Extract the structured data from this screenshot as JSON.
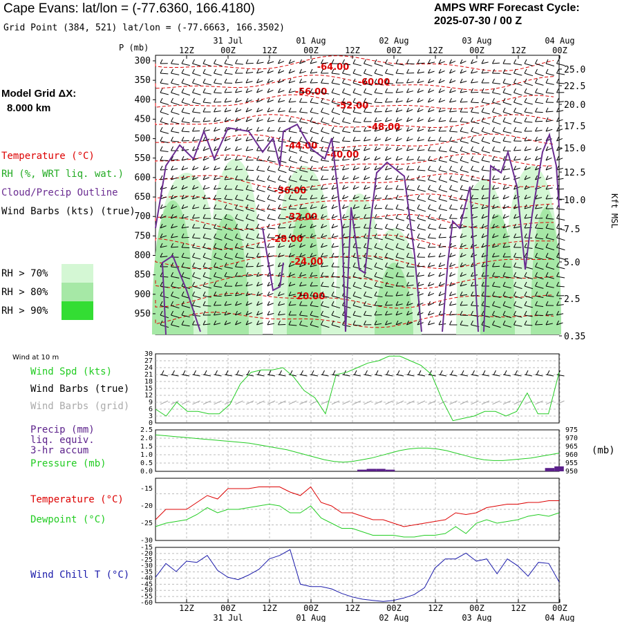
{
  "header": {
    "title": "Cape Evans:  lat/lon = (-77.6360, 166.4180)",
    "subtitle": "Grid Point (384, 521) lat/lon = (-77.6663, 166.3502)",
    "cycle_line1": "AMPS WRF Forecast Cycle:",
    "cycle_line2": "2025-07-30 / 00  Z"
  },
  "sidebar": {
    "model_grid_label": "Model Grid ΔX:",
    "model_grid_value": "8.000 km",
    "legend_temperature": "Temperature (°C)",
    "legend_rh": "RH (%, WRT liq. wat.)",
    "legend_cloud": "Cloud/Precip Outline",
    "legend_wind": "Wind Barbs (kts) (true)",
    "rh70": "RH > 70%",
    "rh80": "RH > 80%",
    "rh90": "RH > 90%"
  },
  "colors": {
    "temperature": "#dd0000",
    "rh70": "#d4f7d4",
    "rh80": "#a6e8a6",
    "rh90": "#33dd33",
    "cloud": "#6a2c91",
    "wind_speed": "#22cc22",
    "dewpoint": "#22cc22",
    "pressure": "#22cc22",
    "precip": "#5a1f8a",
    "wind_chill": "#1a1aaa",
    "wind_grid": "#aaaaaa"
  },
  "time_axis": {
    "top_hour_labels": [
      "12Z",
      "00Z",
      "12Z",
      "00Z",
      "12Z",
      "00Z",
      "12Z",
      "00Z",
      "12Z",
      "00Z"
    ],
    "top_date_labels": [
      "31 Jul",
      "01 Aug",
      "02 Aug",
      "03 Aug",
      "04 Aug"
    ],
    "bottom_hour_labels": [
      "12Z",
      "00Z",
      "12Z",
      "00Z",
      "12Z",
      "00Z",
      "12Z",
      "00Z",
      "12Z",
      "00Z"
    ],
    "bottom_date_labels": [
      "31 Jul",
      "01 Aug",
      "02 Aug",
      "03 Aug",
      "04 Aug"
    ]
  },
  "chart_data": [
    {
      "type": "heatmap",
      "title": "",
      "ylabel_left": "P (mb)",
      "ylabel_right": "Kft MSL",
      "pressure_ticks": [
        "300",
        "350",
        "400",
        "450",
        "500",
        "550",
        "600",
        "650",
        "700",
        "750",
        "800",
        "850",
        "900",
        "950"
      ],
      "height_ticks": [
        "25.0",
        "22.5",
        "20.0",
        "17.5",
        "15.0",
        "12.5",
        "10.0",
        "7.5",
        "5.0",
        "2.5",
        "0.35"
      ],
      "temperature_contour_labels": [
        "-64.00",
        "-60.00",
        "-56.00",
        "-52.00",
        "-48.00",
        "-44.00",
        "-40.00",
        "-36.00",
        "-32.00",
        "-28.00",
        "-24.00",
        "-20.00"
      ],
      "series": [
        {
          "name": "Temperature (°C)",
          "contour_values": [
            -64,
            -60,
            -56,
            -52,
            -48,
            -44,
            -40,
            -36,
            -32,
            -28,
            -24,
            -20
          ]
        },
        {
          "name": "RH (%, WRT liq. wat.)",
          "thresholds": [
            70,
            80,
            90
          ]
        }
      ]
    },
    {
      "type": "line",
      "title": "Wind at 10 m",
      "series_labels": [
        "Wind Spd (kts)",
        "Wind Barbs (true)",
        "Wind Barbs (grid)"
      ],
      "y_ticks": [
        "30",
        "27",
        "24",
        "21",
        "18",
        "15",
        "12",
        "9",
        "6",
        "3",
        "0"
      ],
      "ylim": [
        0,
        30
      ],
      "series": [
        {
          "name": "Wind Spd (kts)",
          "values": [
            6,
            3,
            9,
            5,
            5,
            4,
            4,
            8,
            17,
            22,
            23,
            23,
            24,
            20,
            14,
            11,
            4,
            21,
            22,
            24,
            26,
            27,
            29,
            29,
            27,
            25,
            21,
            10,
            1,
            2,
            3,
            5,
            5,
            3,
            5,
            13,
            4,
            4,
            22
          ]
        }
      ]
    },
    {
      "type": "line",
      "title": "",
      "series_labels": [
        "Precip (mm)",
        "liq. equiv.",
        "3-hr accum",
        "Pressure (mb)"
      ],
      "y_ticks_left": [
        "2.5",
        "2.0",
        "1.5",
        "1.0",
        "0.5",
        "0.0"
      ],
      "y_ticks_right": [
        "975",
        "970",
        "965",
        "960",
        "955",
        "950"
      ],
      "right_unit": "(mb)",
      "ylim_left": [
        0,
        2.5
      ],
      "ylim_right": [
        950,
        975
      ],
      "series": [
        {
          "name": "Pressure (mb)",
          "values": [
            972,
            971.5,
            971,
            970.5,
            970,
            969.5,
            969,
            968.5,
            968,
            967.5,
            967,
            966,
            965,
            964,
            963,
            961.5,
            960,
            958.5,
            957,
            956,
            955.5,
            956,
            957,
            958,
            959.5,
            961,
            962.5,
            963.5,
            964,
            964,
            963.5,
            962.5,
            961,
            959.5,
            958,
            957,
            956.5,
            956.5,
            957,
            957.5,
            958,
            959,
            960,
            961
          ]
        },
        {
          "name": "Precip (mm)",
          "values": [
            0,
            0,
            0,
            0,
            0,
            0,
            0,
            0,
            0,
            0,
            0,
            0,
            0,
            0,
            0,
            0,
            0,
            0,
            0,
            0,
            0,
            0,
            0.1,
            0.15,
            0.15,
            0.1,
            0,
            0,
            0,
            0,
            0,
            0,
            0,
            0,
            0,
            0,
            0,
            0,
            0,
            0,
            0,
            0,
            0.2,
            0.3
          ]
        }
      ]
    },
    {
      "type": "line",
      "title": "",
      "series_labels": [
        "Temperature (°C)",
        "Dewpoint (°C)"
      ],
      "y_ticks": [
        "-15",
        "-20",
        "-25",
        "-30"
      ],
      "ylim": [
        -30,
        -12
      ],
      "series": [
        {
          "name": "Temperature (°C)",
          "values": [
            -24,
            -21,
            -21,
            -21,
            -19,
            -17,
            -18,
            -15,
            -15,
            -15,
            -14.5,
            -14.5,
            -14.5,
            -16,
            -17,
            -14.5,
            -19,
            -20,
            -22,
            -22,
            -23,
            -24,
            -24,
            -25,
            -26,
            -25.5,
            -25,
            -24.5,
            -24,
            -22,
            -22.5,
            -22,
            -20.5,
            -20,
            -19.5,
            -19.5,
            -19,
            -19,
            -18.5,
            -18.5
          ]
        },
        {
          "name": "Dewpoint (°C)",
          "values": [
            -26,
            -25,
            -24.5,
            -24,
            -22.5,
            -20.5,
            -22,
            -21,
            -21,
            -20.5,
            -20,
            -19.5,
            -20,
            -22,
            -22,
            -20,
            -23.5,
            -25,
            -26.5,
            -26.5,
            -27.5,
            -28.5,
            -28.5,
            -28.5,
            -29,
            -29,
            -28.5,
            -28.5,
            -28,
            -26,
            -28,
            -25,
            -24,
            -25,
            -24.5,
            -24,
            -23,
            -22.5,
            -23,
            -22
          ]
        }
      ]
    },
    {
      "type": "line",
      "title": "",
      "series_labels": [
        "Wind Chill T (°C)"
      ],
      "y_ticks": [
        "-15",
        "-20",
        "-25",
        "-30",
        "-35",
        "-40",
        "-45",
        "-50",
        "-55",
        "-60"
      ],
      "ylim": [
        -60,
        -12
      ],
      "series": [
        {
          "name": "Wind Chill T (°C)",
          "values": [
            -38,
            -26,
            -33,
            -24,
            -25,
            -19,
            -32,
            -38,
            -40,
            -36,
            -31,
            -22,
            -19,
            -14,
            -44,
            -46,
            -46,
            -48,
            -52,
            -55,
            -57,
            -58,
            -59,
            -58,
            -56,
            -53,
            -47,
            -30,
            -22,
            -22,
            -17,
            -24,
            -22,
            -35,
            -22,
            -28,
            -37,
            -25,
            -26,
            -42
          ]
        }
      ]
    }
  ]
}
